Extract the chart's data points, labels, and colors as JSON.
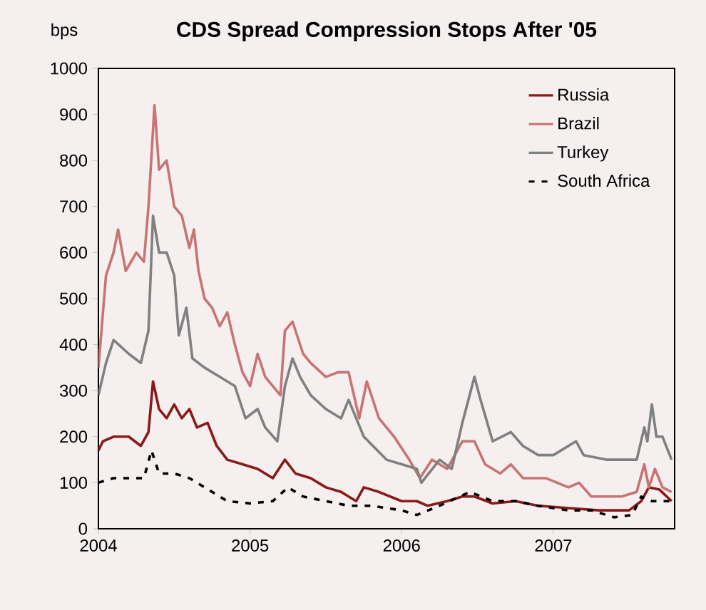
{
  "chart_data": {
    "type": "line",
    "title": "CDS Spread Compression Stops After '05",
    "ylabel": "bps",
    "xlim": [
      2004,
      2007.8
    ],
    "xticks": [
      2004,
      2005,
      2006,
      2007
    ],
    "ylim": [
      0,
      1000
    ],
    "yticks": [
      0,
      100,
      200,
      300,
      400,
      500,
      600,
      700,
      800,
      900,
      1000
    ],
    "legend": "top right",
    "series": [
      {
        "name": "Russia",
        "color": "#8b1a1a",
        "line_style": "solid",
        "x": [
          2004.0,
          2004.03,
          2004.1,
          2004.2,
          2004.28,
          2004.33,
          2004.36,
          2004.4,
          2004.45,
          2004.5,
          2004.55,
          2004.6,
          2004.65,
          2004.72,
          2004.78,
          2004.85,
          2004.95,
          2005.05,
          2005.15,
          2005.23,
          2005.3,
          2005.4,
          2005.5,
          2005.6,
          2005.7,
          2005.75,
          2005.85,
          2006.0,
          2006.1,
          2006.17,
          2006.3,
          2006.4,
          2006.48,
          2006.6,
          2006.75,
          2006.9,
          2007.1,
          2007.3,
          2007.5,
          2007.58,
          2007.63,
          2007.7,
          2007.78
        ],
        "values": [
          170,
          190,
          200,
          200,
          180,
          210,
          320,
          260,
          240,
          270,
          240,
          260,
          220,
          230,
          180,
          150,
          140,
          130,
          110,
          150,
          120,
          110,
          90,
          80,
          60,
          90,
          80,
          60,
          60,
          50,
          60,
          70,
          70,
          55,
          60,
          50,
          45,
          40,
          40,
          60,
          90,
          85,
          60
        ]
      },
      {
        "name": "Brazil",
        "color": "#c87474",
        "line_style": "solid",
        "x": [
          2004.0,
          2004.05,
          2004.1,
          2004.13,
          2004.18,
          2004.25,
          2004.3,
          2004.33,
          2004.37,
          2004.4,
          2004.45,
          2004.5,
          2004.55,
          2004.6,
          2004.63,
          2004.66,
          2004.7,
          2004.75,
          2004.8,
          2004.85,
          2004.9,
          2004.95,
          2005.0,
          2005.05,
          2005.1,
          2005.2,
          2005.23,
          2005.28,
          2005.35,
          2005.4,
          2005.5,
          2005.58,
          2005.65,
          2005.72,
          2005.77,
          2005.85,
          2005.95,
          2006.05,
          2006.12,
          2006.2,
          2006.3,
          2006.4,
          2006.48,
          2006.55,
          2006.65,
          2006.72,
          2006.8,
          2006.95,
          2007.1,
          2007.17,
          2007.25,
          2007.45,
          2007.55,
          2007.6,
          2007.63,
          2007.67,
          2007.72,
          2007.78
        ],
        "values": [
          350,
          550,
          600,
          650,
          560,
          600,
          580,
          700,
          920,
          780,
          800,
          700,
          680,
          610,
          650,
          560,
          500,
          480,
          440,
          470,
          400,
          340,
          310,
          380,
          330,
          290,
          430,
          450,
          380,
          360,
          330,
          340,
          340,
          240,
          320,
          240,
          200,
          150,
          110,
          150,
          130,
          190,
          190,
          140,
          120,
          140,
          110,
          110,
          90,
          100,
          70,
          70,
          80,
          140,
          90,
          130,
          90,
          80
        ]
      },
      {
        "name": "Turkey",
        "color": "#808080",
        "line_style": "solid",
        "x": [
          2004.0,
          2004.05,
          2004.1,
          2004.2,
          2004.28,
          2004.33,
          2004.36,
          2004.4,
          2004.45,
          2004.5,
          2004.53,
          2004.58,
          2004.62,
          2004.7,
          2004.8,
          2004.9,
          2004.97,
          2005.05,
          2005.1,
          2005.18,
          2005.23,
          2005.28,
          2005.33,
          2005.4,
          2005.5,
          2005.6,
          2005.65,
          2005.75,
          2005.9,
          2006.0,
          2006.1,
          2006.13,
          2006.25,
          2006.33,
          2006.4,
          2006.48,
          2006.52,
          2006.6,
          2006.72,
          2006.8,
          2006.9,
          2007.0,
          2007.15,
          2007.2,
          2007.35,
          2007.55,
          2007.6,
          2007.62,
          2007.65,
          2007.68,
          2007.72,
          2007.78
        ],
        "values": [
          290,
          360,
          410,
          380,
          360,
          430,
          680,
          600,
          600,
          550,
          420,
          480,
          370,
          350,
          330,
          310,
          240,
          260,
          220,
          190,
          310,
          370,
          330,
          290,
          260,
          240,
          280,
          200,
          150,
          140,
          130,
          100,
          150,
          130,
          230,
          330,
          280,
          190,
          210,
          180,
          160,
          160,
          190,
          160,
          150,
          150,
          220,
          190,
          270,
          200,
          200,
          150
        ]
      },
      {
        "name": "South Africa",
        "color": "#000000",
        "line_style": "dashed",
        "x": [
          2004.0,
          2004.1,
          2004.2,
          2004.3,
          2004.35,
          2004.4,
          2004.5,
          2004.6,
          2004.75,
          2004.85,
          2005.0,
          2005.15,
          2005.25,
          2005.35,
          2005.5,
          2005.65,
          2005.8,
          2006.0,
          2006.1,
          2006.25,
          2006.45,
          2006.6,
          2006.75,
          2006.9,
          2007.1,
          2007.25,
          2007.4,
          2007.52,
          2007.58,
          2007.65,
          2007.78
        ],
        "values": [
          100,
          110,
          110,
          110,
          170,
          120,
          120,
          110,
          80,
          60,
          55,
          60,
          90,
          70,
          60,
          50,
          50,
          40,
          30,
          50,
          80,
          60,
          60,
          50,
          40,
          40,
          25,
          30,
          70,
          60,
          60
        ]
      }
    ]
  }
}
